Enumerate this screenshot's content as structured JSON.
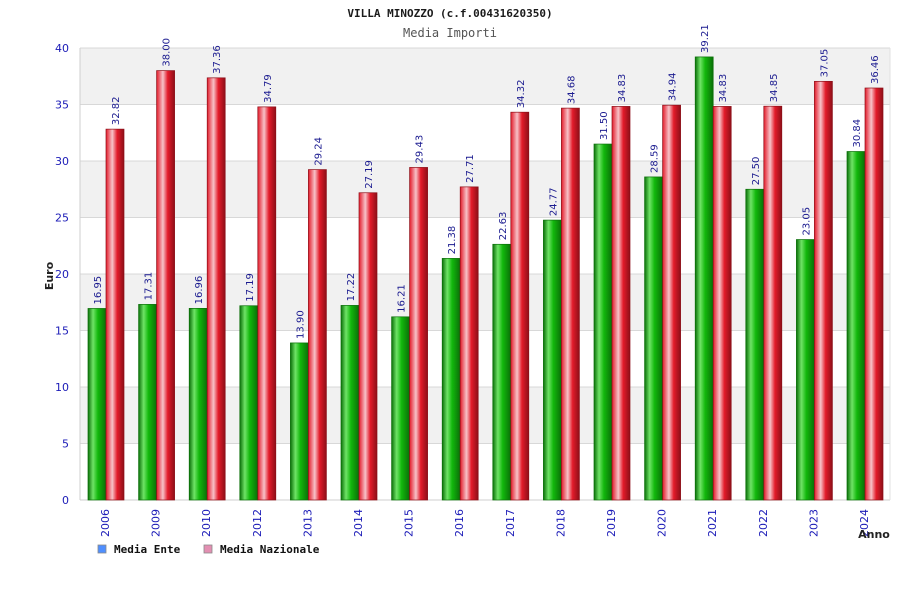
{
  "title": "VILLA MINOZZO (c.f.00431620350)",
  "subtitle": "Media Importi",
  "colors": {
    "green": "#12b80c",
    "green_dark": "#0a6f08",
    "green_light": "#6fe366",
    "red": "#e31b2a",
    "red_dark": "#8d0f18",
    "red_light": "#f7c2c8",
    "grid": "#d8d8d8",
    "band": "#f1f1f1",
    "axis_text": "#1b1bb7",
    "value_text": "#1a1a8f",
    "legend_blue": "#4f8fff",
    "legend_pink": "#e38fb2"
  },
  "legend": [
    {
      "name": "Media Ente",
      "color_key": "legend_blue"
    },
    {
      "name": "Media Nazionale",
      "color_key": "legend_pink"
    }
  ],
  "chart_data": {
    "type": "bar",
    "title": "VILLA MINOZZO (c.f.00431620350)",
    "subtitle": "Media Importi",
    "xlabel": "Anno",
    "ylabel": "Euro",
    "ylim": [
      0,
      40
    ],
    "yticks": [
      0,
      5,
      10,
      15,
      20,
      25,
      30,
      35,
      40
    ],
    "categories": [
      "2006",
      "2009",
      "2010",
      "2012",
      "2013",
      "2014",
      "2015",
      "2016",
      "2017",
      "2018",
      "2019",
      "2020",
      "2021",
      "2022",
      "2023",
      "2024"
    ],
    "series": [
      {
        "name": "Media Ente",
        "values": [
          16.95,
          17.31,
          16.96,
          17.19,
          13.9,
          17.22,
          16.21,
          21.38,
          22.63,
          24.77,
          31.5,
          28.59,
          39.21,
          27.5,
          23.05,
          30.84
        ]
      },
      {
        "name": "Media Nazionale",
        "values": [
          32.82,
          38.0,
          37.36,
          34.79,
          29.24,
          27.19,
          29.43,
          27.71,
          34.32,
          34.68,
          34.83,
          34.94,
          34.83,
          34.85,
          37.05,
          36.46
        ]
      }
    ],
    "grid": true,
    "legend_position": "bottom-left"
  }
}
